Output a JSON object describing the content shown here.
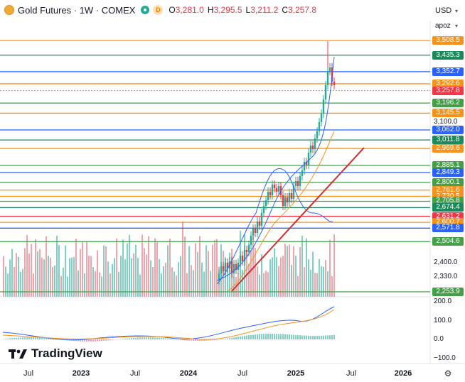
{
  "header": {
    "title": "Gold Futures · 1W · COMEX",
    "d_badge": "D",
    "ohlc": [
      {
        "label": "O",
        "value": "3,281.0"
      },
      {
        "label": "H",
        "value": "3,295.5"
      },
      {
        "label": "L",
        "value": "3,211.2"
      },
      {
        "label": "C",
        "value": "3,257.8"
      }
    ]
  },
  "controls": {
    "currency": "USD",
    "scale": "apoz"
  },
  "price_lines": [
    {
      "value": "3,508.5",
      "color": "#f7931a"
    },
    {
      "value": "3,435.3",
      "color": "#1b8a5a"
    },
    {
      "value": "3,352.7",
      "color": "#2962ff"
    },
    {
      "value": "3,292.6",
      "color": "#f7931a"
    },
    {
      "value": "3,257.8",
      "color": "#f23645"
    },
    {
      "value": "3,196.2",
      "color": "#43a047"
    },
    {
      "value": "3,145.5",
      "color": "#f7931a"
    },
    {
      "value": "3,062.0",
      "color": "#2962ff"
    },
    {
      "value": "3,011.8",
      "color": "#1b8a5a"
    },
    {
      "value": "2,969.6",
      "color": "#f7931a"
    },
    {
      "value": "2,885.1",
      "color": "#43a047"
    },
    {
      "value": "2,849.3",
      "color": "#2962ff"
    },
    {
      "value": "2,800.1",
      "color": "#43a047"
    },
    {
      "value": "2,761.6",
      "color": "#f7931a"
    },
    {
      "value": "2,730.5",
      "color": "#f7931a"
    },
    {
      "value": "2,705.8",
      "color": "#43a047"
    },
    {
      "value": "2,674.4",
      "color": "#1b8a5a"
    },
    {
      "value": "2,631.2",
      "color": "#f23645"
    },
    {
      "value": "2,600.7",
      "color": "#f7931a"
    },
    {
      "value": "2,571.8",
      "color": "#2962ff"
    },
    {
      "value": "2,504.6",
      "color": "#43a047"
    },
    {
      "value": "2,253.9",
      "color": "#43a047"
    }
  ],
  "price_ticks": [
    "3,100.0",
    "2,400.0",
    "2,330.0"
  ],
  "osc_ticks": [
    "200.0",
    "100.0",
    "0.0",
    "−100.0"
  ],
  "time_labels": [
    {
      "text": "Jul",
      "bold": false
    },
    {
      "text": "2023",
      "bold": true
    },
    {
      "text": "Jul",
      "bold": false
    },
    {
      "text": "2024",
      "bold": true
    },
    {
      "text": "Jul",
      "bold": false
    },
    {
      "text": "2025",
      "bold": true
    },
    {
      "text": "Jul",
      "bold": false
    },
    {
      "text": "2026",
      "bold": true
    }
  ],
  "logo_text": "TradingView",
  "colors": {
    "up": "#22ab94",
    "down": "#f23645",
    "bb": "#2962ff",
    "ma": "#f7931a",
    "trend": "#d32f2f",
    "macd": "#2962ff",
    "signal": "#f7931a"
  },
  "icons": {
    "symbol": "gold-coin-icon",
    "settings": "gear-icon"
  }
}
